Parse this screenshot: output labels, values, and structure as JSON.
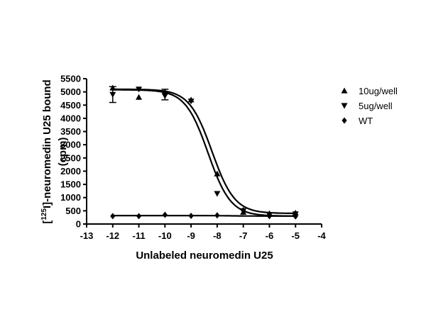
{
  "chart_data": {
    "type": "scatter",
    "xlabel": "Unlabeled neuromedin U25",
    "ylabel": {
      "bracket_open": "[",
      "superscript": "125",
      "main": "I]-neuromedin U25 bound",
      "unit": "(cpm)"
    },
    "xlim": [
      -13,
      -4
    ],
    "ylim": [
      0,
      5500
    ],
    "xticks": [
      -13,
      -12,
      -11,
      -10,
      -9,
      -8,
      -7,
      -6,
      -5,
      -4
    ],
    "yticks": [
      0,
      500,
      1000,
      1500,
      2000,
      2500,
      3000,
      3500,
      4000,
      4500,
      5000,
      5500
    ],
    "legend_position": "right",
    "series": [
      {
        "name": "10ug/well",
        "marker": "triangle-up",
        "x": [
          -12,
          -11,
          -10,
          -9,
          -8,
          -7,
          -6,
          -5
        ],
        "y": [
          5150,
          4800,
          5000,
          4700,
          1900,
          450,
          400,
          420
        ],
        "fit": {
          "top": 5100,
          "bottom": 400,
          "log_ec50": -8.2,
          "hill": -1.0
        }
      },
      {
        "name": "5ug/well",
        "marker": "triangle-down",
        "x": [
          -12,
          -11,
          -10,
          -9,
          -8,
          -7,
          -6,
          -5
        ],
        "y": [
          4900,
          5100,
          4850,
          4650,
          1150,
          500,
          350,
          380
        ],
        "fit": {
          "top": 5080,
          "bottom": 300,
          "log_ec50": -8.35,
          "hill": -1.0
        }
      },
      {
        "name": "WT",
        "marker": "diamond",
        "x": [
          -12,
          -11,
          -10,
          -9,
          -8,
          -7,
          -6,
          -5
        ],
        "y": [
          300,
          300,
          350,
          310,
          330,
          520,
          300,
          290
        ],
        "fit": {
          "top": 300,
          "bottom": 320,
          "log_ec50": -7.5,
          "hill": 1.0
        }
      }
    ],
    "error_bars": [
      {
        "series": "5ug/well",
        "x": -12,
        "low": 4600,
        "high": 5200
      },
      {
        "series": "5ug/well",
        "x": -10,
        "low": 4700,
        "high": 5100
      }
    ]
  }
}
